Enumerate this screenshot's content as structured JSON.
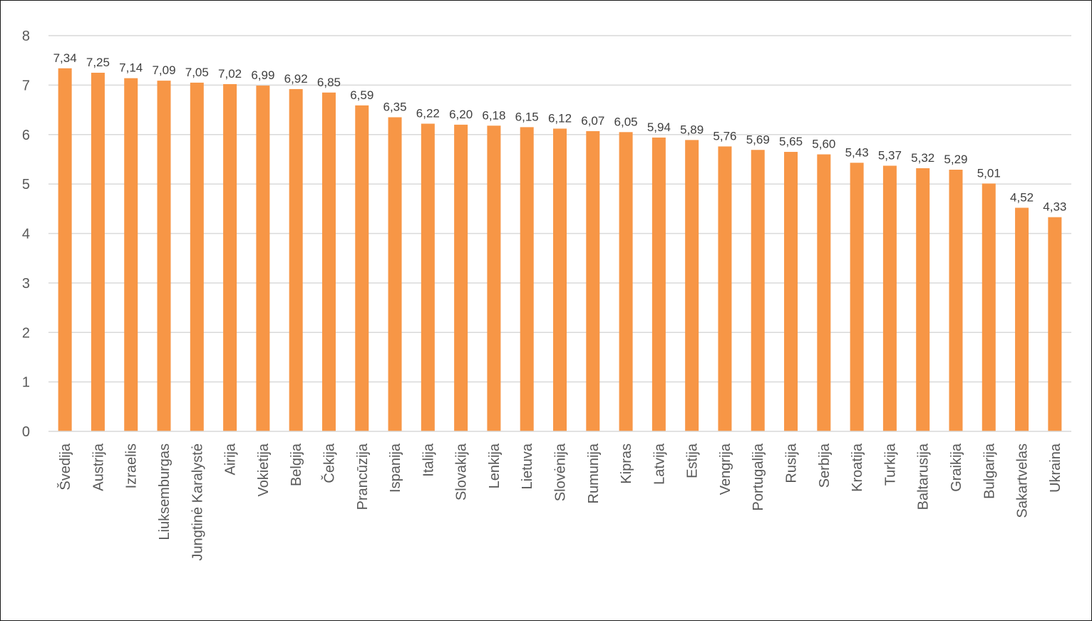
{
  "chart_data": {
    "type": "bar",
    "title": "",
    "xlabel": "",
    "ylabel": "",
    "ylim": [
      0,
      8
    ],
    "yticks": [
      0,
      1,
      2,
      3,
      4,
      5,
      6,
      7,
      8
    ],
    "grid": true,
    "legend": "none",
    "bar_color": "#F79646",
    "categories": [
      "Švedija",
      "Austrija",
      "Izraelis",
      "Liuksemburgas",
      "Jungtinė Karalystė",
      "Airija",
      "Vokietija",
      "Belgija",
      "Čekija",
      "Prancūzija",
      "Ispanija",
      "Italija",
      "Slovakija",
      "Lenkija",
      "Lietuva",
      "Slovėnija",
      "Rumunija",
      "Kipras",
      "Latvija",
      "Estija",
      "Vengrija",
      "Portugalija",
      "Rusija",
      "Serbija",
      "Kroatija",
      "Turkija",
      "Baltarusija",
      "Graikija",
      "Bulgarija",
      "Sakartvelas",
      "Ukraina"
    ],
    "values": [
      7.34,
      7.25,
      7.14,
      7.09,
      7.05,
      7.02,
      6.99,
      6.92,
      6.85,
      6.59,
      6.35,
      6.22,
      6.2,
      6.18,
      6.15,
      6.12,
      6.07,
      6.05,
      5.94,
      5.89,
      5.76,
      5.69,
      5.65,
      5.6,
      5.43,
      5.37,
      5.32,
      5.29,
      5.01,
      4.52,
      4.33
    ],
    "data_labels": [
      "7,34",
      "7,25",
      "7,14",
      "7,09",
      "7,05",
      "7,02",
      "6,99",
      "6,92",
      "6,85",
      "6,59",
      "6,35",
      "6,22",
      "6,20",
      "6,18",
      "6,15",
      "6,12",
      "6,07",
      "6,05",
      "5,94",
      "5,89",
      "5,76",
      "5,69",
      "5,65",
      "5,60",
      "5,43",
      "5,37",
      "5,32",
      "5,29",
      "5,01",
      "4,52",
      "4,33"
    ]
  }
}
